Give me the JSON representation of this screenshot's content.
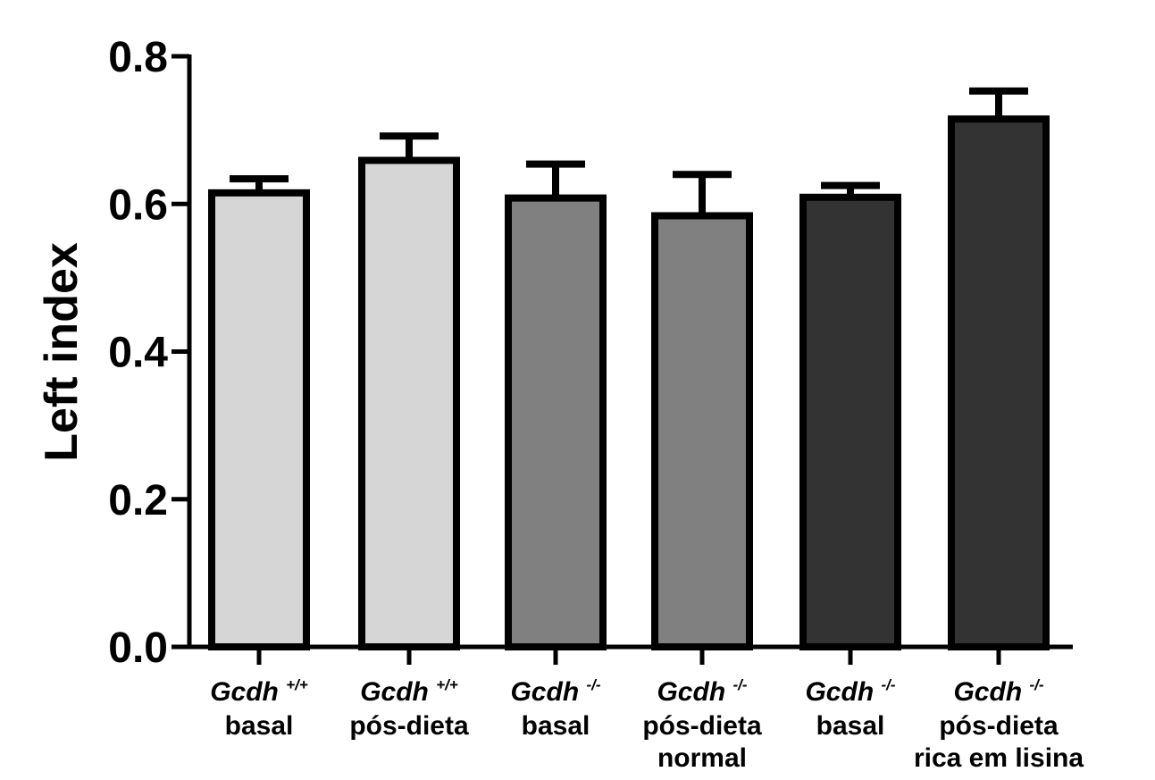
{
  "chart_data": {
    "type": "bar",
    "ylabel": "Left index",
    "ylim": [
      0,
      0.8
    ],
    "yticks": [
      "0.0",
      "0.2",
      "0.4",
      "0.6",
      "0.8"
    ],
    "grid": false,
    "legend": "none",
    "categories": [
      {
        "gene": "Gcdh",
        "genotype": "+/+",
        "lines": [
          "basal"
        ]
      },
      {
        "gene": "Gcdh",
        "genotype": "+/+",
        "lines": [
          "pós-dieta"
        ]
      },
      {
        "gene": "Gcdh",
        "genotype": "-/-",
        "lines": [
          "basal"
        ]
      },
      {
        "gene": "Gcdh",
        "genotype": "-/-",
        "lines": [
          "pós-dieta",
          "normal"
        ]
      },
      {
        "gene": "Gcdh",
        "genotype": "-/-",
        "lines": [
          "basal"
        ]
      },
      {
        "gene": "Gcdh",
        "genotype": "-/-",
        "lines": [
          "pós-dieta",
          "rica em lisina"
        ]
      }
    ],
    "values": [
      0.615,
      0.659,
      0.608,
      0.584,
      0.609,
      0.715
    ],
    "errors": [
      0.019,
      0.033,
      0.046,
      0.056,
      0.016,
      0.038
    ],
    "colors": [
      "#d6d6d6",
      "#d6d6d6",
      "#808080",
      "#808080",
      "#333333",
      "#333333"
    ]
  }
}
